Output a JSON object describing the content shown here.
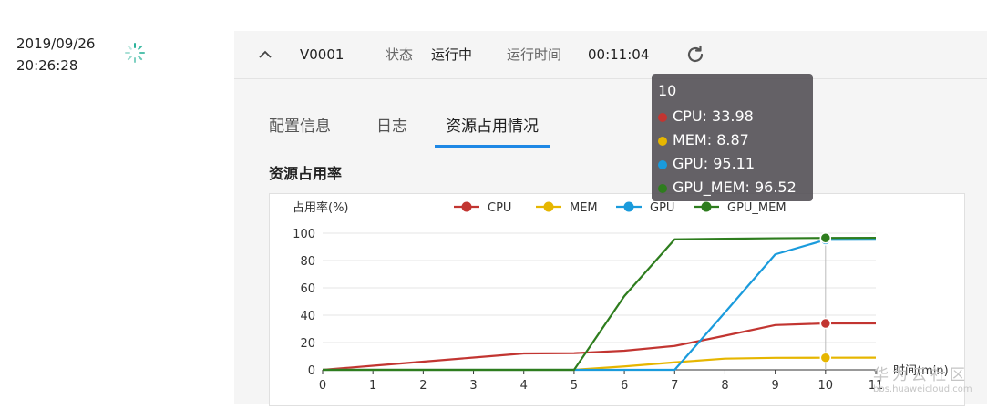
{
  "job": {
    "date": "2019/09/26",
    "time": "20:26:28",
    "id": "V0001",
    "status_label": "状态",
    "status_value": "运行中",
    "runtime_label": "运行时间",
    "runtime_value": "00:11:04"
  },
  "tabs": [
    {
      "label": "配置信息",
      "active": false
    },
    {
      "label": "日志",
      "active": false
    },
    {
      "label": "资源占用情况",
      "active": true
    }
  ],
  "section_title": "资源占用率",
  "icons": {
    "collapse": "chevron-up-icon",
    "refresh": "refresh-icon",
    "loading": "loading-spinner-icon"
  },
  "chart_data": {
    "type": "line",
    "ylabel": "占用率(%)",
    "xlabel": "时间(min)",
    "x": [
      0,
      1,
      2,
      3,
      4,
      5,
      6,
      7,
      8,
      9,
      10,
      11
    ],
    "xlim": [
      0,
      11
    ],
    "ylim": [
      0,
      100
    ],
    "yticks": [
      0,
      20,
      40,
      60,
      80,
      100
    ],
    "grid": true,
    "legend_position": "top",
    "series": [
      {
        "name": "CPU",
        "color": "#c23531",
        "values": [
          0,
          3,
          6,
          9,
          12,
          12.2,
          14,
          17.5,
          25,
          32.8,
          33.98,
          34
        ]
      },
      {
        "name": "MEM",
        "color": "#e6b600",
        "values": [
          0,
          0,
          0,
          0,
          0,
          0,
          2.5,
          5.5,
          8.2,
          8.8,
          8.87,
          8.9
        ]
      },
      {
        "name": "GPU",
        "color": "#1a9bdc",
        "values": [
          0,
          0,
          0,
          0,
          0,
          0,
          0,
          0,
          42,
          84.5,
          95.11,
          95.2
        ]
      },
      {
        "name": "GPU_MEM",
        "color": "#2e7d1e",
        "values": [
          0,
          0,
          0,
          0,
          0,
          0,
          54,
          95.5,
          95.9,
          96.3,
          96.52,
          96.6
        ]
      }
    ],
    "highlight_x": 10,
    "tooltip": {
      "title": "10",
      "rows": [
        {
          "label": "CPU: 33.98",
          "color": "#c23531"
        },
        {
          "label": "MEM: 8.87",
          "color": "#e6b600"
        },
        {
          "label": "GPU: 95.11",
          "color": "#1a9bdc"
        },
        {
          "label": "GPU_MEM: 96.52",
          "color": "#2e7d1e"
        }
      ]
    }
  },
  "watermark": {
    "main": "华为云社区",
    "sub": "bbs.huaweicloud.com"
  }
}
